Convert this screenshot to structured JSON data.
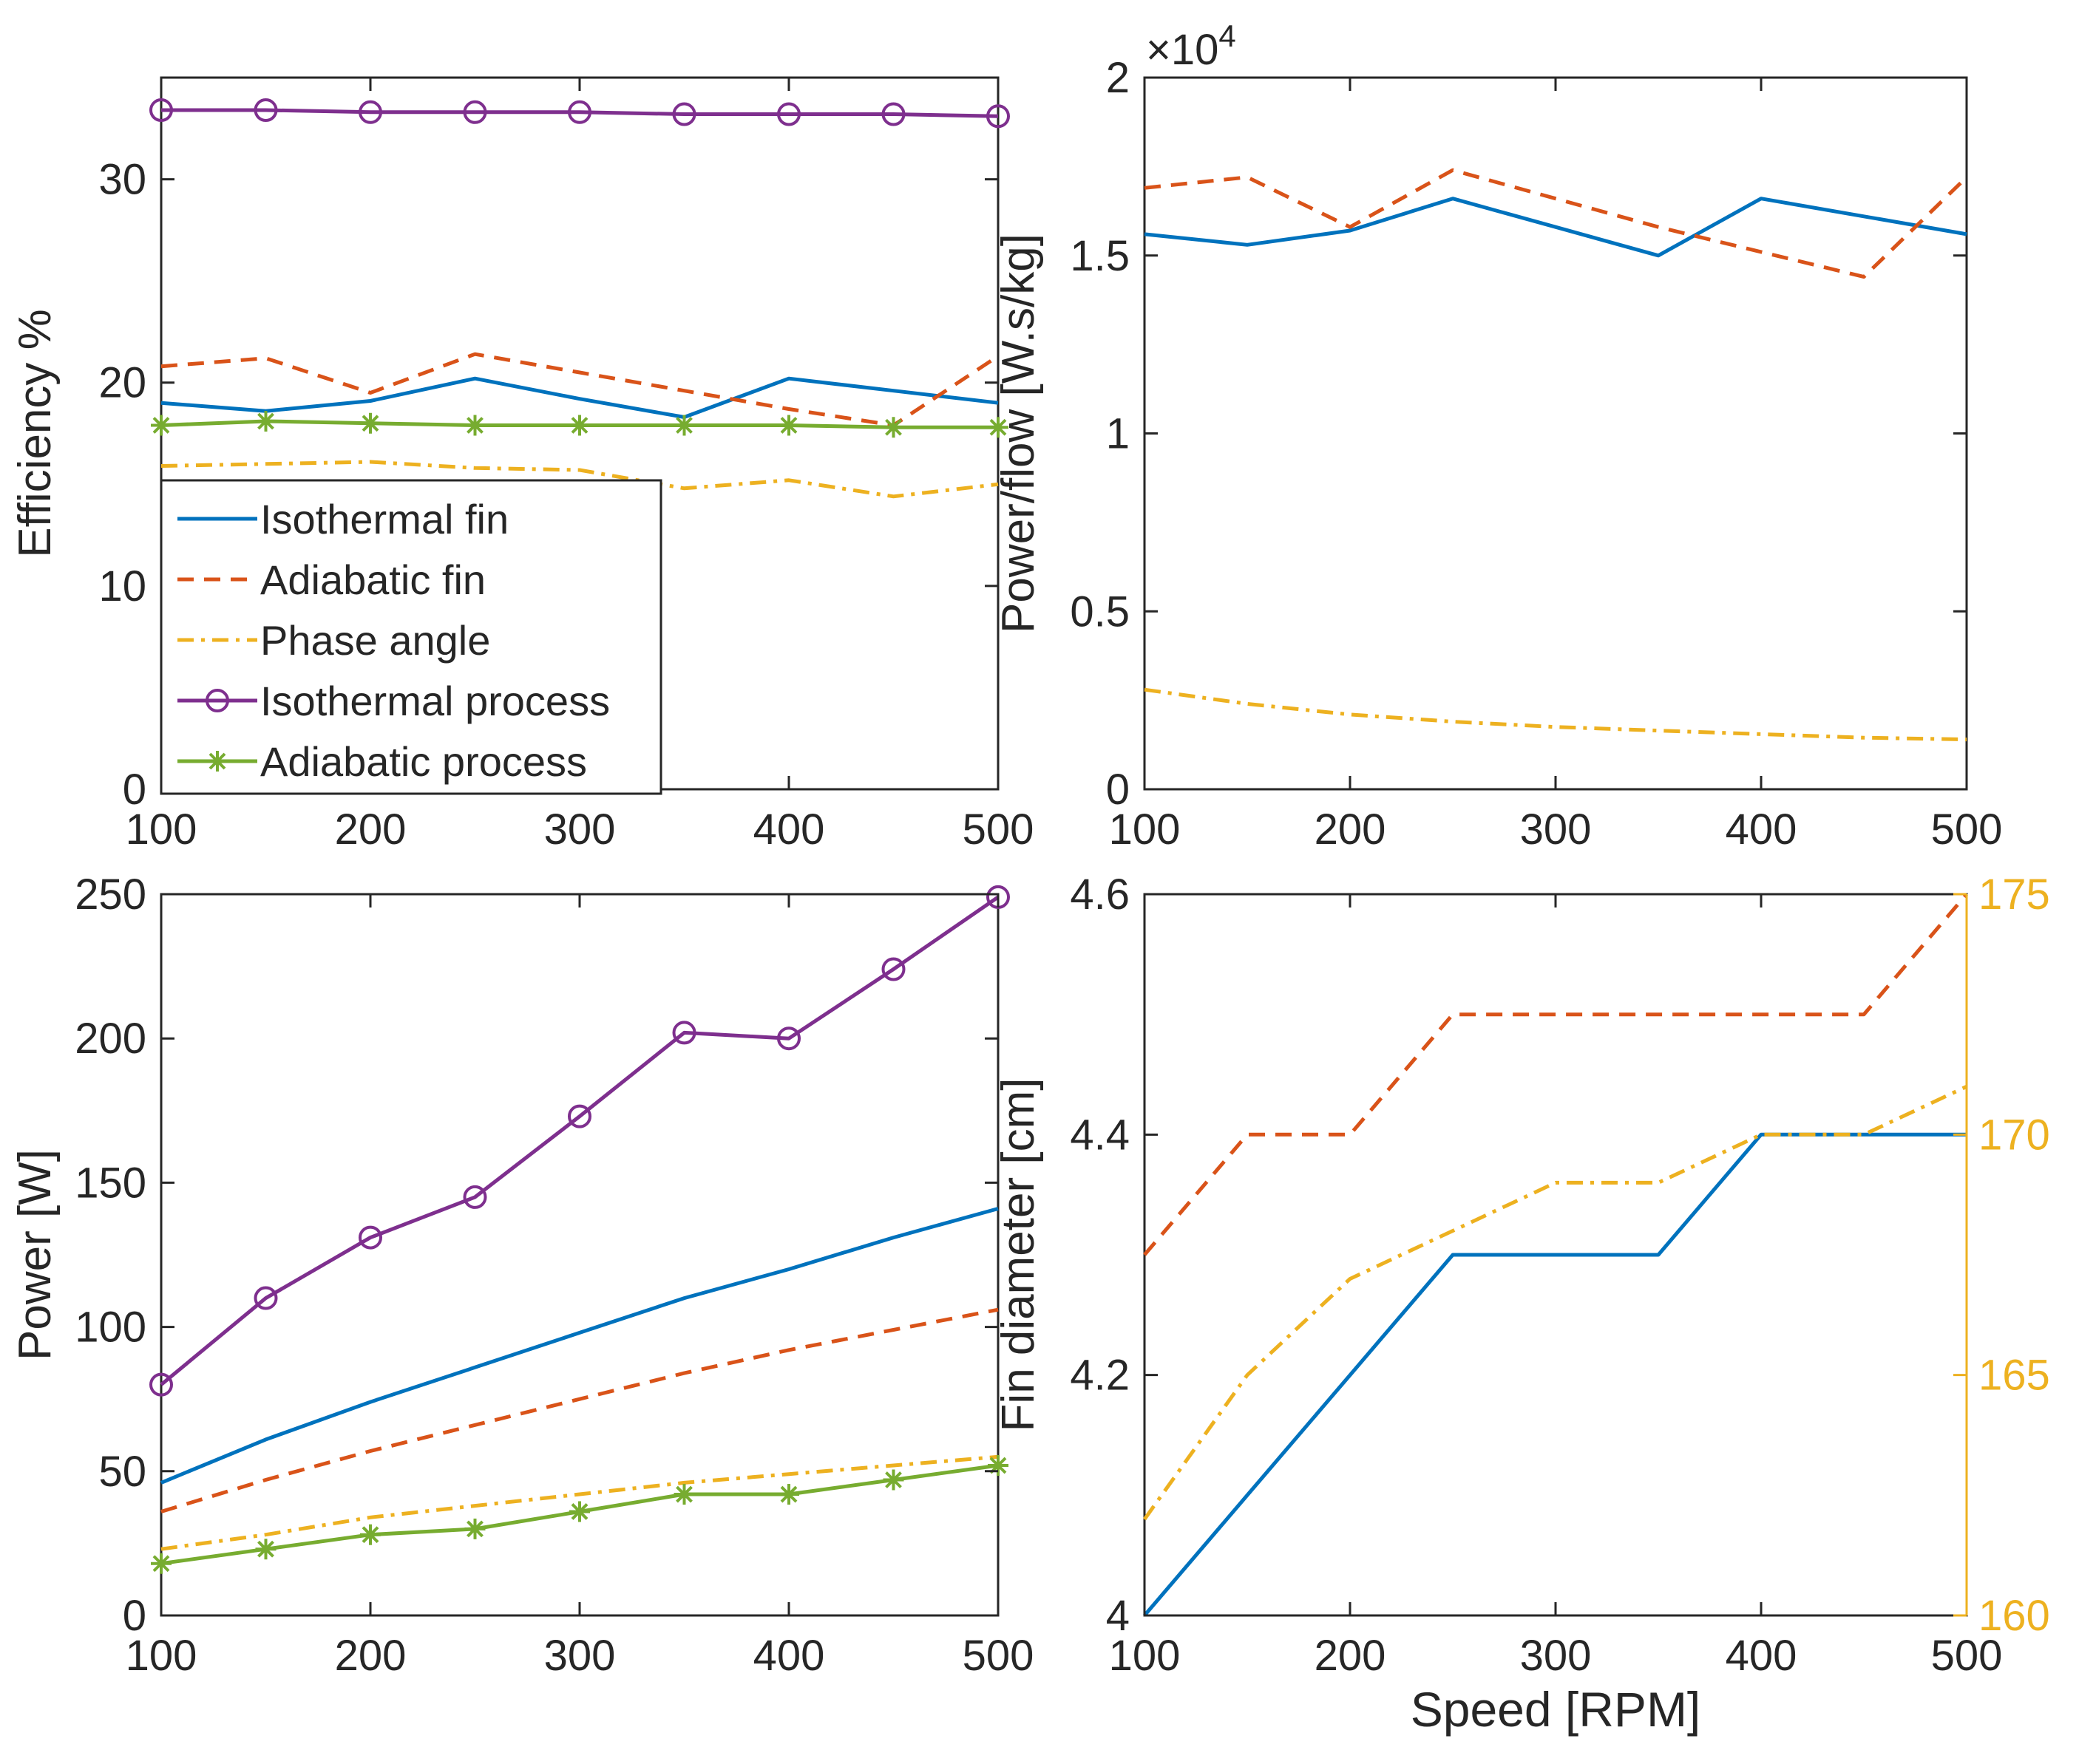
{
  "colors": {
    "isothermal_fin": "#0072BD",
    "adiabatic_fin": "#D95319",
    "phase_angle": "#EDB120",
    "isothermal_process": "#7E2F8E",
    "adiabatic_process": "#77AC30",
    "axis": "#262626"
  },
  "chart_data": [
    {
      "id": "efficiency",
      "type": "line",
      "title": "",
      "xlabel": "",
      "ylabel": "Efficiency %",
      "xlim": [
        100,
        500
      ],
      "ylim": [
        0,
        35
      ],
      "xticks": [
        100,
        200,
        300,
        400,
        500
      ],
      "yticks": [
        0,
        10,
        20,
        30
      ],
      "xtick_labels": [
        "100",
        "200",
        "300",
        "400",
        "500"
      ],
      "ytick_labels": [
        "0",
        "10",
        "20",
        "30"
      ],
      "legend": {
        "position": "bottom-left",
        "entries": [
          "Isothermal fin",
          "Adiabatic fin",
          "Phase angle",
          "Isothermal process",
          "Adiabatic process"
        ]
      },
      "x": [
        100,
        150,
        200,
        250,
        300,
        350,
        400,
        450,
        500
      ],
      "series": [
        {
          "name": "Isothermal fin",
          "style": "solid",
          "values": [
            19.0,
            18.6,
            19.1,
            20.2,
            19.2,
            18.3,
            20.2,
            19.6,
            19.0
          ]
        },
        {
          "name": "Adiabatic fin",
          "style": "dashed",
          "values": [
            20.8,
            21.2,
            19.5,
            21.4,
            20.5,
            19.6,
            18.7,
            17.9,
            21.3
          ]
        },
        {
          "name": "Phase angle",
          "style": "dashdot",
          "values": [
            15.9,
            16.0,
            16.1,
            15.8,
            15.7,
            14.8,
            15.2,
            14.4,
            15.0
          ]
        },
        {
          "name": "Isothermal process",
          "style": "solid",
          "marker": "circle",
          "values": [
            33.4,
            33.4,
            33.3,
            33.3,
            33.3,
            33.2,
            33.2,
            33.2,
            33.1
          ]
        },
        {
          "name": "Adiabatic process",
          "style": "solid",
          "marker": "asterisk",
          "values": [
            17.9,
            18.1,
            18.0,
            17.9,
            17.9,
            17.9,
            17.9,
            17.8,
            17.8
          ]
        }
      ]
    },
    {
      "id": "power_flow",
      "type": "line",
      "title": "",
      "xlabel": "",
      "ylabel": "Power/flow [W.s/kg]",
      "exponent_label": "×10",
      "exponent_power": "4",
      "xlim": [
        100,
        500
      ],
      "ylim": [
        0,
        20000
      ],
      "xticks": [
        100,
        200,
        300,
        400,
        500
      ],
      "yticks": [
        0,
        5000,
        10000,
        15000,
        20000
      ],
      "xtick_labels": [
        "100",
        "200",
        "300",
        "400",
        "500"
      ],
      "ytick_labels": [
        "0",
        "0.5",
        "1",
        "1.5",
        "2"
      ],
      "x": [
        100,
        150,
        200,
        250,
        300,
        350,
        400,
        450,
        500
      ],
      "series": [
        {
          "name": "Isothermal fin",
          "style": "solid",
          "values": [
            15600,
            15300,
            15700,
            16600,
            15800,
            15000,
            16600,
            16100,
            15600
          ]
        },
        {
          "name": "Adiabatic fin",
          "style": "dashed",
          "values": [
            16900,
            17200,
            15800,
            17400,
            16600,
            15800,
            15100,
            14400,
            17200
          ]
        },
        {
          "name": "Phase angle",
          "style": "dashdot",
          "values": [
            2800,
            2400,
            2100,
            1900,
            1750,
            1650,
            1550,
            1450,
            1400
          ]
        }
      ]
    },
    {
      "id": "power",
      "type": "line",
      "title": "",
      "xlabel": "",
      "ylabel": "Power [W]",
      "xlim": [
        100,
        500
      ],
      "ylim": [
        0,
        250
      ],
      "xticks": [
        100,
        200,
        300,
        400,
        500
      ],
      "yticks": [
        0,
        50,
        100,
        150,
        200,
        250
      ],
      "xtick_labels": [
        "100",
        "200",
        "300",
        "400",
        "500"
      ],
      "ytick_labels": [
        "0",
        "50",
        "100",
        "150",
        "200",
        "250"
      ],
      "x": [
        100,
        150,
        200,
        250,
        300,
        350,
        400,
        450,
        500
      ],
      "series": [
        {
          "name": "Isothermal fin",
          "style": "solid",
          "values": [
            46,
            61,
            74,
            86,
            98,
            110,
            120,
            131,
            141
          ]
        },
        {
          "name": "Adiabatic fin",
          "style": "dashed",
          "values": [
            36,
            47,
            57,
            66,
            75,
            84,
            92,
            99,
            106
          ]
        },
        {
          "name": "Phase angle",
          "style": "dashdot",
          "values": [
            23,
            28,
            34,
            38,
            42,
            46,
            49,
            52,
            55
          ]
        },
        {
          "name": "Isothermal process",
          "style": "solid",
          "marker": "circle",
          "values": [
            80,
            110,
            131,
            145,
            173,
            202,
            200,
            224,
            249
          ]
        },
        {
          "name": "Adiabatic process",
          "style": "solid",
          "marker": "asterisk",
          "values": [
            18,
            23,
            28,
            30,
            36,
            42,
            42,
            47,
            52
          ]
        }
      ]
    },
    {
      "id": "fin_diameter",
      "type": "line",
      "title": "",
      "xlabel": "Speed [RPM]",
      "ylabel": "Fin diameter [cm]",
      "xlim": [
        100,
        500
      ],
      "ylim": [
        4.0,
        4.6
      ],
      "y2lim": [
        160,
        175
      ],
      "xticks": [
        100,
        200,
        300,
        400,
        500
      ],
      "yticks": [
        4.0,
        4.2,
        4.4,
        4.6
      ],
      "y2ticks": [
        160,
        165,
        170,
        175
      ],
      "xtick_labels": [
        "100",
        "200",
        "300",
        "400",
        "500"
      ],
      "ytick_labels": [
        "4",
        "4.2",
        "4.4",
        "4.6"
      ],
      "y2tick_labels": [
        "160",
        "165",
        "170",
        "175"
      ],
      "x": [
        100,
        150,
        200,
        250,
        300,
        350,
        400,
        450,
        500
      ],
      "series": [
        {
          "name": "Isothermal fin",
          "style": "solid",
          "axis": "left",
          "values": [
            4.0,
            4.1,
            4.2,
            4.3,
            4.3,
            4.3,
            4.4,
            4.4,
            4.4
          ]
        },
        {
          "name": "Adiabatic fin",
          "style": "dashed",
          "axis": "left",
          "values": [
            4.3,
            4.4,
            4.4,
            4.5,
            4.5,
            4.5,
            4.5,
            4.5,
            4.6
          ]
        },
        {
          "name": "Phase angle",
          "style": "dashdot",
          "axis": "right",
          "values": [
            162,
            165,
            167,
            168,
            169,
            169,
            170,
            170,
            171
          ]
        }
      ]
    }
  ]
}
